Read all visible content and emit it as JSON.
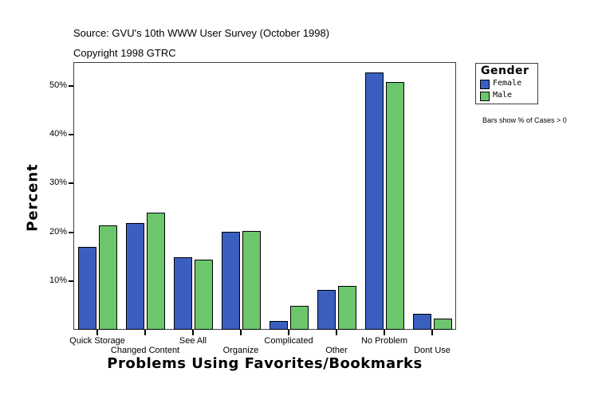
{
  "header": {
    "source": "Source: GVU's 10th WWW User Survey (October 1998)",
    "copyright": "Copyright 1998 GTRC"
  },
  "legend": {
    "title": "Gender",
    "items": [
      {
        "label": "Female",
        "color": "#3a5fbf"
      },
      {
        "label": "Male",
        "color": "#6cc66c"
      }
    ]
  },
  "note": "Bars show % of Cases > 0",
  "axes": {
    "ylabel": "Percent",
    "xlabel": "Problems Using Favorites/Bookmarks",
    "yticks": [
      "10%",
      "20%",
      "30%",
      "40%",
      "50%"
    ]
  },
  "chart_data": {
    "type": "bar",
    "title": "",
    "xlabel": "Problems Using Favorites/Bookmarks",
    "ylabel": "Percent",
    "ylim": [
      0,
      55
    ],
    "grid": false,
    "legend_position": "right",
    "legend_title": "Gender",
    "categories": [
      "Quick Storage",
      "Changed Content",
      "See All",
      "Organize",
      "Complicated",
      "Other",
      "No Problem",
      "Dont Use"
    ],
    "series": [
      {
        "name": "Female",
        "color": "#3a5fbf",
        "values": [
          17.0,
          21.9,
          14.9,
          20.1,
          1.8,
          8.2,
          52.8,
          3.3
        ]
      },
      {
        "name": "Male",
        "color": "#6cc66c",
        "values": [
          21.4,
          24.0,
          14.4,
          20.3,
          4.9,
          9.0,
          50.8,
          2.3
        ]
      }
    ],
    "annotations": [
      "Source: GVU's 10th WWW User Survey (October 1998)",
      "Copyright 1998 GTRC",
      "Bars show % of Cases > 0"
    ]
  }
}
